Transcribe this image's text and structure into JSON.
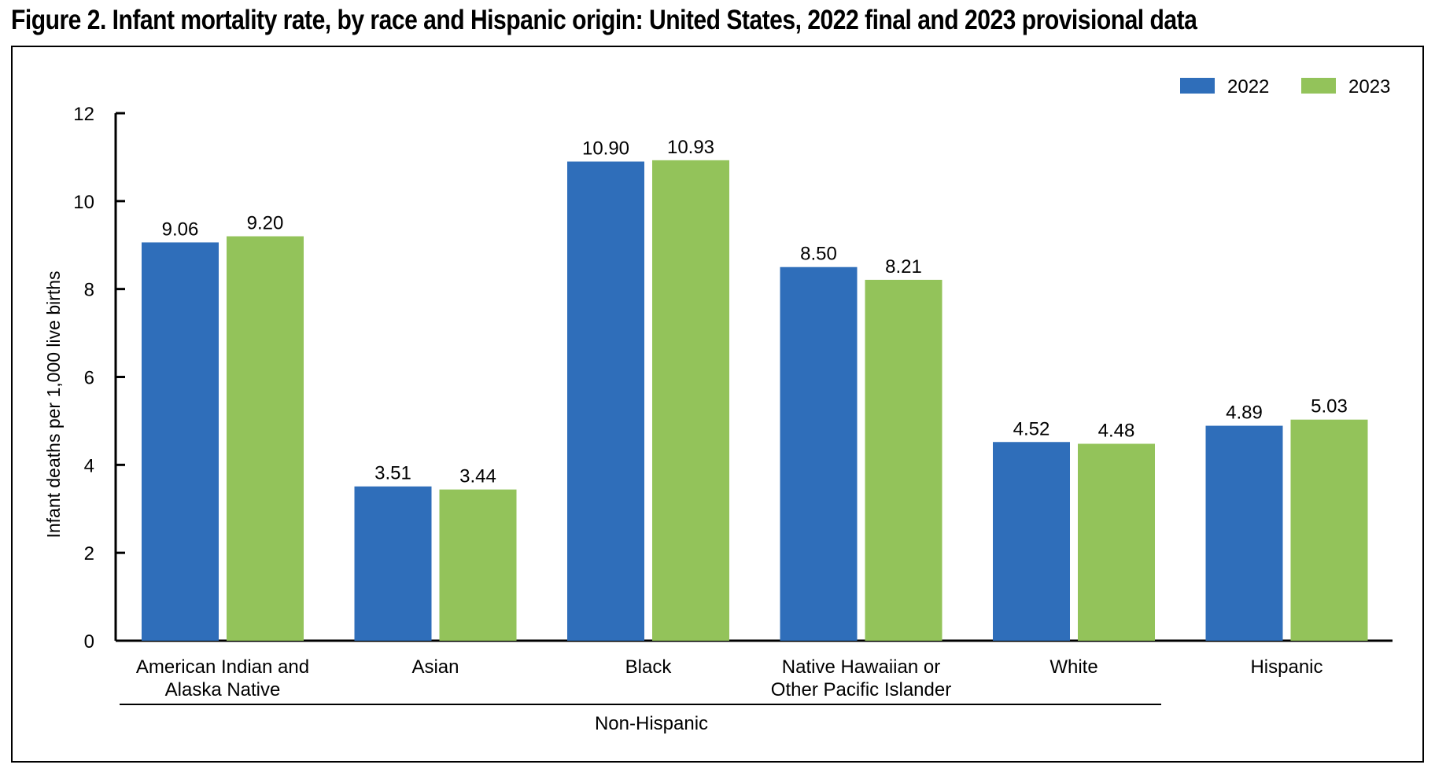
{
  "figure_title": "Figure 2. Infant mortality rate, by race and Hispanic origin: United States, 2022 final and 2023 provisional data",
  "colors": {
    "2022": "#2f6eba",
    "2023": "#93c35a"
  },
  "chart_data": {
    "type": "bar",
    "title": "Figure 2. Infant mortality rate, by race and Hispanic origin: United States, 2022 final and 2023 provisional data",
    "xlabel": "",
    "ylabel": "Infant deaths per 1,000 live births",
    "ylim": [
      0,
      12
    ],
    "yticks": [
      0,
      2,
      4,
      6,
      8,
      10,
      12
    ],
    "grid": false,
    "legend_position": "top-right",
    "categories": [
      [
        "American Indian and",
        "Alaska Native"
      ],
      [
        "Asian"
      ],
      [
        "Black"
      ],
      [
        "Native Hawaiian or",
        "Other Pacific Islander"
      ],
      [
        "White"
      ],
      [
        "Hispanic"
      ]
    ],
    "group_label": "Non-Hispanic",
    "series": [
      {
        "name": "2022",
        "values": [
          9.06,
          3.51,
          10.9,
          8.5,
          4.52,
          4.89
        ],
        "labels": [
          "9.06",
          "3.51",
          "10.90",
          "8.50",
          "4.52",
          "4.89"
        ]
      },
      {
        "name": "2023",
        "values": [
          9.2,
          3.44,
          10.93,
          8.21,
          4.48,
          5.03
        ],
        "labels": [
          "9.20",
          "3.44",
          "10.93",
          "8.21",
          "4.48",
          "5.03"
        ]
      }
    ]
  }
}
